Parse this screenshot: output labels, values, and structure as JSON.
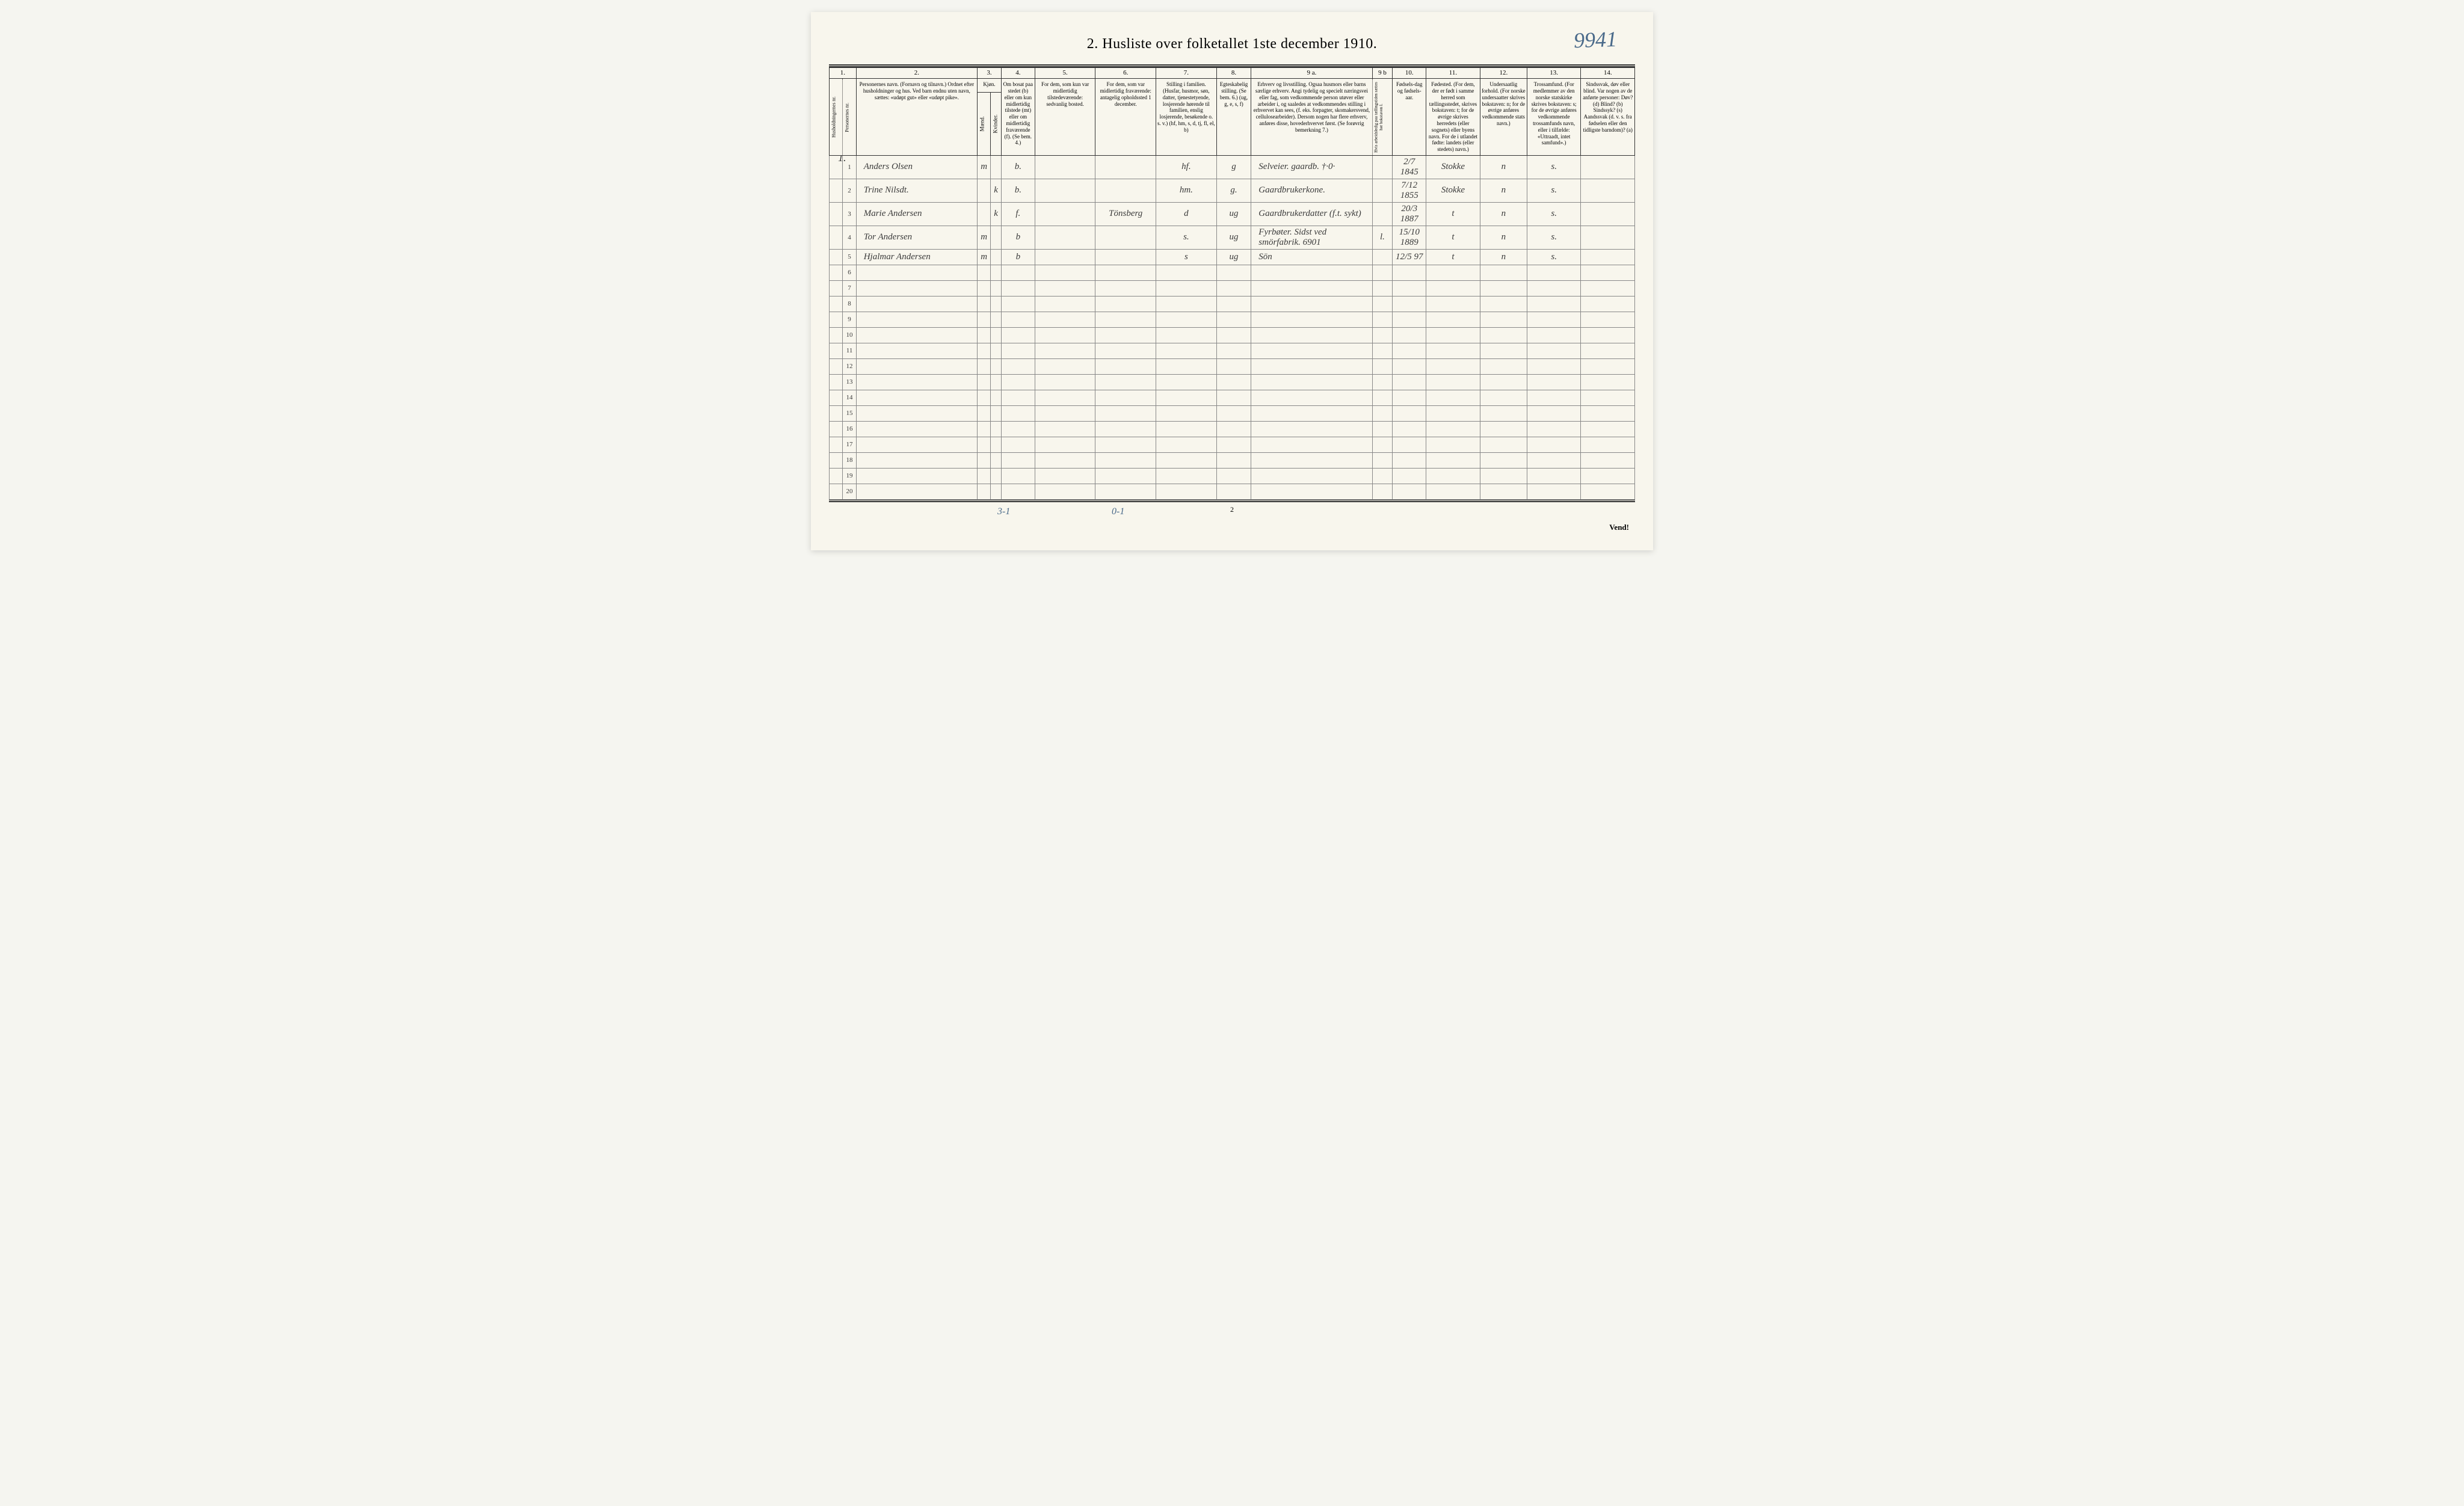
{
  "title": "2. Husliste over folketallet 1ste december 1910.",
  "handwritten_page": "9941",
  "bottom_page_num": "2",
  "vend_text": "Vend!",
  "annotation_1": "3-1",
  "annotation_2": "0-1",
  "household_marks": {
    "row1": "1."
  },
  "column_numbers": {
    "c1": "1.",
    "c2": "2.",
    "c3": "3.",
    "c4": "4.",
    "c5": "5.",
    "c6": "6.",
    "c7": "7.",
    "c8": "8.",
    "c9a": "9 a.",
    "c9b": "9 b",
    "c10": "10.",
    "c11": "11.",
    "c12": "12.",
    "c13": "13.",
    "c14": "14."
  },
  "headers": {
    "c1a": "Husholdningernes nr.",
    "c1b": "Personernes nr.",
    "c2": "Personernes navn.\n(Fornavn og tilnavn.)\nOrdnet efter husholdninger og hus.\nVed barn endnu uten navn, sættes: «udøpt gut» eller «udøpt pike».",
    "c3": "Kjøn.",
    "c3a": "Mænd.",
    "c3b": "Kvinder.",
    "c3_mk": "m. k.",
    "c4": "Om bosat paa stedet (b) eller om kun midlertidig tilstede (mt) eller om midlertidig fraværende (f). (Se bem. 4.)",
    "c5": "For dem, som kun var midlertidig tilstedeværende:\nsedvanlig bosted.",
    "c6": "For dem, som var midlertidig fraværende:\nantagelig opholdssted 1 december.",
    "c7": "Stilling i familien.\n(Husfar, husmor, søn, datter, tjenestetyende, losjerende hørende til familien, enslig losjerende, besøkende o. s. v.)\n(hf, hm, s, d, tj, fl, el, b)",
    "c8": "Egteskabelig stilling.\n(Se bem. 6.)\n(ug, g, e, s, f)",
    "c9a": "Erhverv og livsstilling.\nOgsaa husmors eller barns særlige erhverv. Angi tydelig og specielt næringsvei eller fag, som vedkommende person utøver eller arbeider i, og saaledes at vedkommendes stilling i erhvervet kan sees, (f. eks. forpagter, skomakersvend, cellulosearbeider). Dersom nogen har flere erhverv, anføres disse, hovederhvervet først.\n(Se forøvrig bemerkning 7.)",
    "c9b": "Hvis arbeidsledig paa tællingstiden sættes her bokstaven l.",
    "c10": "Fødsels-dag og fødsels-aar.",
    "c11": "Fødested.\n(For dem, der er født i samme herred som tællingsstedet, skrives bokstaven: t; for de øvrige skrives herredets (eller sognets) eller byens navn. For de i utlandet fødte: landets (eller stedets) navn.)",
    "c12": "Undersaatlig forhold.\n(For norske undersaatter skrives bokstaven: n; for de øvrige anføres vedkommende stats navn.)",
    "c13": "Trossamfund.\n(For medlemmer av den norske statskirke skrives bokstaven: s; for de øvrige anføres vedkommende trossamfunds navn, eller i tilfælde: «Uttraadt, intet samfund».)",
    "c14": "Sindssvak, døv eller blind.\nVar nogen av de anførte personer:\nDøv? (d)\nBlind? (b)\nSindssyk? (s)\nAandssvak (d. v. s. fra fødselen eller den tidligste barndom)? (a)"
  },
  "rows": [
    {
      "num": "1",
      "name": "Anders Olsen",
      "sex_m": "m",
      "sex_k": "",
      "resident": "b.",
      "midl_tilstede": "",
      "midl_frav": "",
      "family_pos": "hf.",
      "marital": "g",
      "occupation": "Selveier. gaardb.   †·0·",
      "unemployed": "",
      "birth": "2/7 1845",
      "birthplace": "Stokke",
      "nationality": "n",
      "religion": "s.",
      "disability": ""
    },
    {
      "num": "2",
      "name": "Trine Nilsdt.",
      "sex_m": "",
      "sex_k": "k",
      "resident": "b.",
      "midl_tilstede": "",
      "midl_frav": "",
      "family_pos": "hm.",
      "marital": "g.",
      "occupation": "Gaardbrukerkone.",
      "unemployed": "",
      "birth": "7/12 1855",
      "birthplace": "Stokke",
      "nationality": "n",
      "religion": "s.",
      "disability": ""
    },
    {
      "num": "3",
      "name": "Marie Andersen",
      "sex_m": "",
      "sex_k": "k",
      "resident": "f.",
      "midl_tilstede": "",
      "midl_frav": "Tönsberg",
      "family_pos": "d",
      "marital": "ug",
      "occupation": "Gaardbrukerdatter (f.t. sykt)",
      "unemployed": "",
      "birth": "20/3 1887",
      "birthplace": "t",
      "nationality": "n",
      "religion": "s.",
      "disability": ""
    },
    {
      "num": "4",
      "name": "Tor Andersen",
      "sex_m": "m",
      "sex_k": "",
      "resident": "b",
      "midl_tilstede": "",
      "midl_frav": "",
      "family_pos": "s.",
      "marital": "ug",
      "occupation": "Fyrbøter. Sidst ved smörfabrik. 6901",
      "unemployed": "l.",
      "birth": "15/10 1889",
      "birthplace": "t",
      "nationality": "n",
      "religion": "s.",
      "disability": ""
    },
    {
      "num": "5",
      "name": "Hjalmar Andersen",
      "sex_m": "m",
      "sex_k": "",
      "resident": "b",
      "midl_tilstede": "",
      "midl_frav": "",
      "family_pos": "s",
      "marital": "ug",
      "occupation": "Sön",
      "unemployed": "",
      "birth": "12/5 97",
      "birthplace": "t",
      "nationality": "n",
      "religion": "s.",
      "disability": ""
    }
  ],
  "empty_row_nums": [
    "6",
    "7",
    "8",
    "9",
    "10",
    "11",
    "12",
    "13",
    "14",
    "15",
    "16",
    "17",
    "18",
    "19",
    "20"
  ],
  "colors": {
    "page_bg": "#f8f6ed",
    "border": "#333333",
    "light_border": "#888888",
    "ink": "#3a3a3a",
    "blue_ink": "#4a6a8a"
  }
}
